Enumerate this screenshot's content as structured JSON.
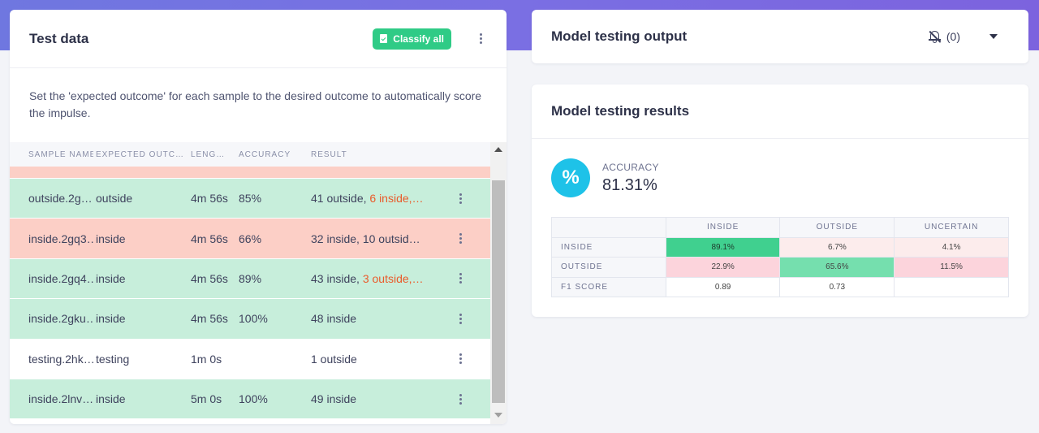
{
  "colors": {
    "accent_green": "#2fcb86",
    "row_correct": "#c7eedb",
    "row_incorrect": "#fccfc6",
    "partial_mismatch": "#ea5a2a",
    "accuracy_badge": "#1ec2e8"
  },
  "test_data": {
    "title": "Test data",
    "classify_all_label": "Classify all",
    "classify_icon": "clipboard-check-icon",
    "description": "Set the 'expected outcome' for each sample to the desired outcome to automatically score the impulse.",
    "columns": [
      "SAMPLE NAME",
      "EXPECTED OUTC…",
      "LENG…",
      "ACCURACY",
      "RESULT"
    ],
    "rows": [
      {
        "name": "outside.2g…",
        "expected": "outside",
        "length": "4m 56s",
        "accuracy": "85%",
        "result_plain": "41 outside, ",
        "result_highlight": "6 inside,…",
        "status": "green"
      },
      {
        "name": "inside.2gq3…",
        "expected": "inside",
        "length": "4m 56s",
        "accuracy": "66%",
        "result_plain": "32 inside, 10 outsid…",
        "result_highlight": "",
        "status": "red"
      },
      {
        "name": "inside.2gq4…",
        "expected": "inside",
        "length": "4m 56s",
        "accuracy": "89%",
        "result_plain": "43 inside, ",
        "result_highlight": "3 outside,…",
        "status": "green"
      },
      {
        "name": "inside.2gku…",
        "expected": "inside",
        "length": "4m 56s",
        "accuracy": "100%",
        "result_plain": "48 inside",
        "result_highlight": "",
        "status": "green"
      },
      {
        "name": "testing.2hk…",
        "expected": "testing",
        "length": "1m 0s",
        "accuracy": "",
        "result_plain": "1 outside",
        "result_highlight": "",
        "status": "white"
      },
      {
        "name": "inside.2lnv…",
        "expected": "inside",
        "length": "5m 0s",
        "accuracy": "100%",
        "result_plain": "49 inside",
        "result_highlight": "",
        "status": "green"
      }
    ]
  },
  "output_panel": {
    "title": "Model testing output",
    "notification_icon": "bell-off-icon",
    "notification_count": "(0)",
    "expand_icon": "caret-down-icon"
  },
  "results_panel": {
    "title": "Model testing results",
    "accuracy_icon": "%",
    "accuracy_label": "ACCURACY",
    "accuracy_value": "81.31%",
    "matrix": {
      "columns": [
        "INSIDE",
        "OUTSIDE",
        "UNCERTAIN"
      ],
      "rows": [
        {
          "label": "INSIDE",
          "values": [
            "89.1%",
            "6.7%",
            "4.1%"
          ]
        },
        {
          "label": "OUTSIDE",
          "values": [
            "22.9%",
            "65.6%",
            "11.5%"
          ]
        },
        {
          "label": "F1 SCORE",
          "values": [
            "0.89",
            "0.73",
            ""
          ]
        }
      ]
    }
  }
}
